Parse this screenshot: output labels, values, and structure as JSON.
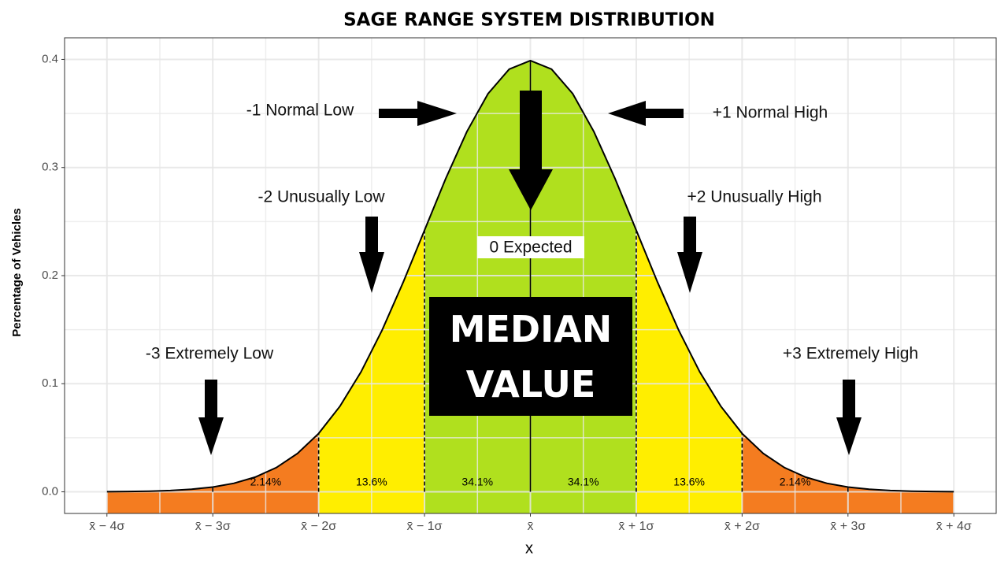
{
  "chart_data": {
    "type": "density",
    "title": "SAGE RANGE SYSTEM DISTRIBUTION",
    "x_label": "x",
    "y_label": "Percentage of Vehicles",
    "xlim": [
      -4.4,
      4.4
    ],
    "ylim": [
      -0.02,
      0.42
    ],
    "xticks": [
      {
        "value": -4,
        "label": "x̄ − 4σ"
      },
      {
        "value": -3,
        "label": "x̄ − 3σ"
      },
      {
        "value": -2,
        "label": "x̄ − 2σ"
      },
      {
        "value": -1,
        "label": "x̄ − 1σ"
      },
      {
        "value": 0,
        "label": "x̄"
      },
      {
        "value": 1,
        "label": "x̄ + 1σ"
      },
      {
        "value": 2,
        "label": "x̄ + 2σ"
      },
      {
        "value": 3,
        "label": "x̄ + 3σ"
      },
      {
        "value": 4,
        "label": "x̄ + 4σ"
      }
    ],
    "yticks": [
      {
        "value": 0,
        "label": "0.0"
      },
      0.1,
      0.2,
      0.3,
      0.4
    ],
    "grid": true,
    "curve": {
      "color": "#000000",
      "x": [
        -4,
        -3.8,
        -3.6,
        -3.4,
        -3.2,
        -3,
        -2.8,
        -2.6,
        -2.4,
        -2.2,
        -2,
        -1.8,
        -1.6,
        -1.4,
        -1.2,
        -1,
        -0.8,
        -0.6,
        -0.4,
        -0.2,
        0,
        0.2,
        0.4,
        0.6,
        0.8,
        1,
        1.2,
        1.4,
        1.6,
        1.8,
        2,
        2.2,
        2.4,
        2.6,
        2.8,
        3,
        3.2,
        3.4,
        3.6,
        3.8,
        4
      ],
      "values": [
        0.0001,
        0.0003,
        0.0006,
        0.0012,
        0.0024,
        0.0044,
        0.0079,
        0.0136,
        0.0224,
        0.0355,
        0.054,
        0.079,
        0.1109,
        0.1497,
        0.1942,
        0.242,
        0.2897,
        0.3332,
        0.3683,
        0.391,
        0.3989,
        0.391,
        0.3683,
        0.3332,
        0.2897,
        0.242,
        0.1942,
        0.1497,
        0.1109,
        0.079,
        0.054,
        0.0355,
        0.0224,
        0.0136,
        0.0079,
        0.0044,
        0.0024,
        0.0012,
        0.0006,
        0.0003,
        0.0001
      ]
    },
    "bands": {
      "edges": [
        -4,
        -3,
        -2,
        -1,
        0,
        1,
        2,
        3,
        4
      ],
      "colors": [
        "#f47c20",
        "#f47c20",
        "#ffee00",
        "#b0e01e",
        "#b0e01e",
        "#ffee00",
        "#f47c20",
        "#f47c20"
      ],
      "values": [
        null,
        2.14,
        13.6,
        34.1,
        34.1,
        13.6,
        2.14,
        null
      ],
      "value_labels": [
        null,
        "2.14%",
        "13.6%",
        "34.1%",
        "34.1%",
        "13.6%",
        "2.14%",
        null
      ]
    },
    "annotations": [
      "-1 Normal Low",
      "+1 Normal High",
      "-2 Unusually Low",
      "+2 Unusually High",
      "-3 Extremely Low",
      "+3 Extremely High",
      "0 Expected",
      "MEDIAN VALUE"
    ]
  }
}
